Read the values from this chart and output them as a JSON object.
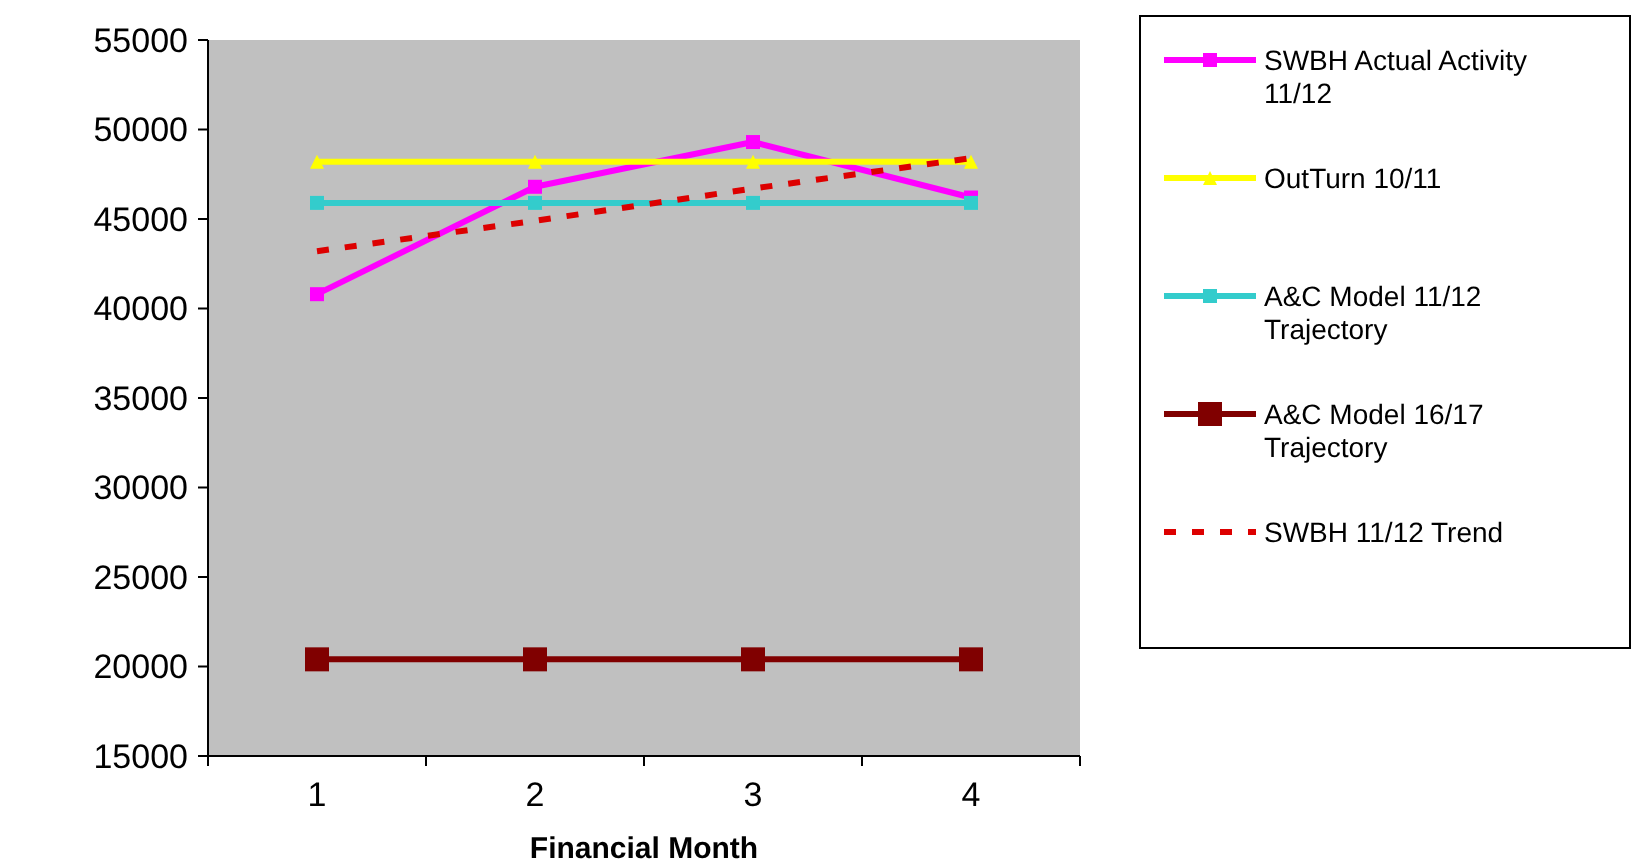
{
  "chart_data": {
    "type": "line",
    "xlabel": "Financial Month",
    "categories": [
      "1",
      "2",
      "3",
      "4"
    ],
    "ylim": [
      15000,
      55000
    ],
    "yticks": [
      15000,
      20000,
      25000,
      30000,
      35000,
      40000,
      45000,
      50000,
      55000
    ],
    "grid": false,
    "legend": "right",
    "series": [
      {
        "name": "SWBH Actual Activity 11/12",
        "color": "#ff00ff",
        "marker": "square",
        "values": [
          40800,
          46800,
          49300,
          46200
        ]
      },
      {
        "name": "OutTurn 10/11",
        "color": "#ffff00",
        "marker": "triangle",
        "values": [
          48200,
          48200,
          48200,
          48200
        ]
      },
      {
        "name": "A&C Model 11/12 Trajectory",
        "color": "#33cccc",
        "marker": "square",
        "values": [
          45900,
          45900,
          45900,
          45900
        ]
      },
      {
        "name": "A&C Model 16/17 Trajectory",
        "color": "#800000",
        "marker": "square",
        "values": [
          20400,
          20400,
          20400,
          20400
        ]
      },
      {
        "name": "SWBH 11/12 Trend",
        "color": "#dd0000",
        "marker": "none",
        "line_style": "dashed",
        "values": [
          43200,
          44900,
          46700,
          48400
        ]
      }
    ]
  }
}
